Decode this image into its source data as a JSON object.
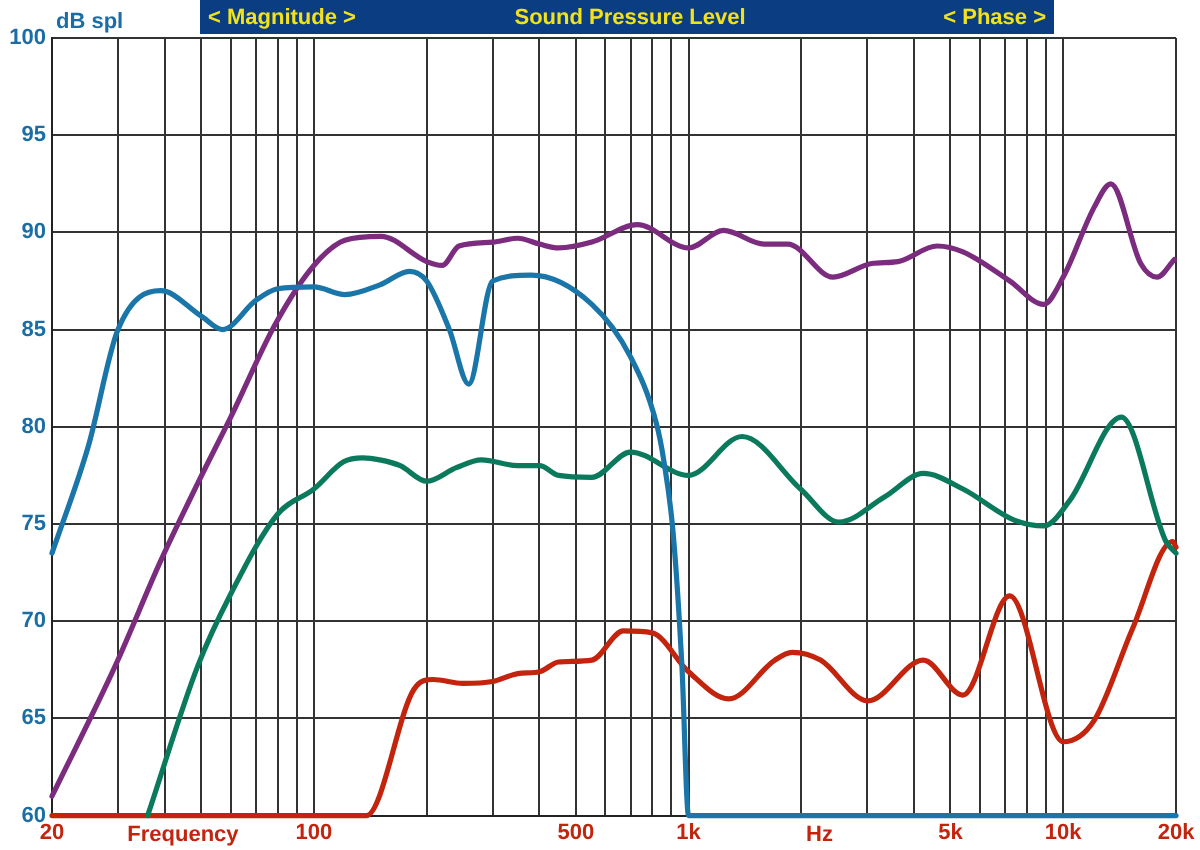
{
  "chart_data": {
    "type": "line",
    "title": "Sound Pressure Level",
    "ylabel": "dB spl",
    "xlabel": "Frequency",
    "annotations": [
      "< Magnitude >",
      "< Phase >",
      "Hz"
    ],
    "log": "x",
    "grid": true,
    "xlim": [
      20,
      20000
    ],
    "ylim": [
      60,
      100
    ],
    "xticks": [
      20,
      {
        "value": 30,
        "label": null
      },
      {
        "value": 40,
        "label": null
      },
      {
        "value": 50,
        "label": null
      },
      {
        "value": 60,
        "label": null
      },
      {
        "value": 70,
        "label": null
      },
      {
        "value": 80,
        "label": null
      },
      {
        "value": 90,
        "label": null
      },
      100,
      {
        "value": 200,
        "label": null
      },
      {
        "value": 300,
        "label": null
      },
      {
        "value": 400,
        "label": null
      },
      500,
      {
        "value": 600,
        "label": null
      },
      {
        "value": 700,
        "label": null
      },
      {
        "value": 800,
        "label": null
      },
      {
        "value": 900,
        "label": null
      },
      {
        "value": 1000,
        "label": "1k"
      },
      {
        "value": 2000,
        "label": null
      },
      {
        "value": 3000,
        "label": null
      },
      {
        "value": 4000,
        "label": null
      },
      {
        "value": 5000,
        "label": "5k"
      },
      {
        "value": 6000,
        "label": null
      },
      {
        "value": 7000,
        "label": null
      },
      {
        "value": 8000,
        "label": null
      },
      {
        "value": 9000,
        "label": null
      },
      {
        "value": 10000,
        "label": "10k"
      },
      {
        "value": 20000,
        "label": "20k"
      }
    ],
    "yticks": [
      60,
      65,
      70,
      75,
      80,
      85,
      90,
      95,
      100
    ],
    "series": [
      {
        "color": "#1a75a8",
        "x": [
          20,
          25,
          30,
          39,
          50,
          57,
          70,
          80,
          100,
          121,
          150,
          180,
          200,
          230,
          259,
          300,
          380,
          552,
          700,
          820,
          860,
          910,
          960,
          1000,
          20000
        ],
        "values": [
          73.5,
          79,
          85,
          87,
          85.7,
          85,
          86.5,
          87.1,
          87.2,
          86.8,
          87.3,
          88,
          87.5,
          85,
          82.2,
          87.5,
          87.8,
          86.3,
          83.6,
          80.2,
          78.2,
          74.5,
          67.7,
          60,
          60
        ]
      },
      {
        "color": "#7b2c7e",
        "x": [
          20,
          29.5,
          39,
          49,
          60,
          79,
          100,
          121,
          151,
          200,
          220,
          244,
          300,
          350,
          400,
          450,
          552,
          730,
          1000,
          1240,
          1590,
          1840,
          2430,
          3080,
          3620,
          4610,
          5400,
          7200,
          8870,
          10000,
          12100,
          13400,
          16100,
          17800,
          19800
        ],
        "values": [
          61,
          67.7,
          73.1,
          77.1,
          80.5,
          85.3,
          88.3,
          89.6,
          89.8,
          88.5,
          88.3,
          89.3,
          89.5,
          89.7,
          89.4,
          89.2,
          89.5,
          90.4,
          89.2,
          90.1,
          89.4,
          89.4,
          87.7,
          88.4,
          88.5,
          89.3,
          89,
          87.5,
          86.3,
          87.7,
          91.3,
          92.5,
          88.4,
          87.7,
          88.6
        ]
      },
      {
        "color": "#0b7a5c",
        "x": [
          36,
          49,
          60,
          80,
          100,
          120,
          135,
          150,
          170,
          200,
          240,
          280,
          350,
          400,
          450,
          552,
          700,
          1000,
          1390,
          1990,
          2520,
          3340,
          4230,
          5400,
          7400,
          8870,
          10400,
          14300,
          18800,
          20000
        ],
        "values": [
          60,
          67.7,
          71.4,
          75.5,
          76.8,
          78.2,
          78.4,
          78.3,
          78,
          77.2,
          77.9,
          78.3,
          78,
          78,
          77.5,
          77.4,
          78.7,
          77.5,
          79.5,
          76.8,
          75.1,
          76.4,
          77.6,
          76.8,
          75.2,
          74.9,
          76.2,
          80.5,
          74.1,
          73.5
        ]
      },
      {
        "color": "#c2240e",
        "x": [
          20,
          138,
          185,
          208,
          250,
          300,
          350,
          400,
          450,
          552,
          670,
          800,
          1000,
          1280,
          1700,
          1890,
          2250,
          3010,
          4230,
          5400,
          7200,
          10000,
          12100,
          15300,
          19600,
          20000
        ],
        "values": [
          60,
          60,
          66.5,
          67,
          66.8,
          66.9,
          67.3,
          67.4,
          67.9,
          68,
          69.5,
          69.4,
          67.4,
          66,
          68,
          68.4,
          68,
          65.9,
          68,
          66.2,
          71.3,
          63.8,
          64.9,
          69.6,
          74.1,
          73.8
        ]
      }
    ]
  }
}
